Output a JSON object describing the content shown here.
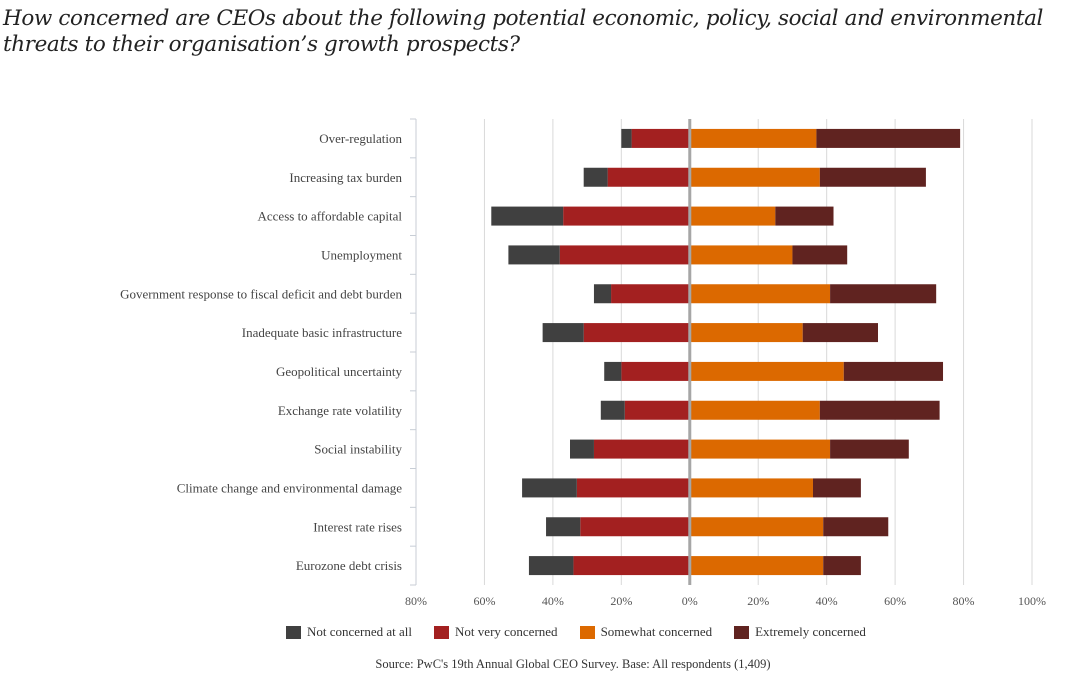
{
  "title": "How concerned are CEOs about the following potential economic, policy, social and environmental threats to their organisation’s growth prospects?",
  "source": "Source: PwC's 19th Annual Global CEO Survey. Base: All respondents (1,409)",
  "chart_data": {
    "type": "bar",
    "orientation": "horizontal-diverging-stacked",
    "title": "How concerned are CEOs about the following potential economic, policy, social and environmental threats to their organisation’s growth prospects?",
    "xlabel": "",
    "ylabel": "",
    "xlim": [
      -80,
      100
    ],
    "x_ticks": [
      "80%",
      "60%",
      "40%",
      "20%",
      "0%",
      "20%",
      "40%",
      "60%",
      "80%",
      "100%"
    ],
    "x_tick_values": [
      -80,
      -60,
      -40,
      -20,
      0,
      20,
      40,
      60,
      80,
      100
    ],
    "grid": true,
    "legend_position": "bottom",
    "categories": [
      "Over-regulation",
      "Increasing tax burden",
      "Access to affordable capital",
      "Unemployment",
      "Government response to fiscal deficit and debt burden",
      "Inadequate basic infrastructure",
      "Geopolitical uncertainty",
      "Exchange rate volatility",
      "Social instability",
      "Climate change and environmental damage",
      "Interest rate rises",
      "Eurozone debt crisis"
    ],
    "series": [
      {
        "name": "Not concerned at all",
        "side": "negative",
        "color": "#404040",
        "values": [
          3,
          7,
          21,
          15,
          5,
          12,
          5,
          7,
          7,
          16,
          10,
          13
        ]
      },
      {
        "name": "Not very concerned",
        "side": "negative",
        "color": "#A32020",
        "values": [
          17,
          24,
          37,
          38,
          23,
          31,
          20,
          19,
          28,
          33,
          32,
          34
        ]
      },
      {
        "name": "Somewhat concerned",
        "side": "positive",
        "color": "#DC6900",
        "values": [
          37,
          38,
          25,
          30,
          41,
          33,
          45,
          38,
          41,
          36,
          39,
          39
        ]
      },
      {
        "name": "Extremely concerned",
        "side": "positive",
        "color": "#602320",
        "values": [
          42,
          31,
          17,
          16,
          31,
          22,
          29,
          35,
          23,
          14,
          19,
          11
        ]
      }
    ]
  }
}
